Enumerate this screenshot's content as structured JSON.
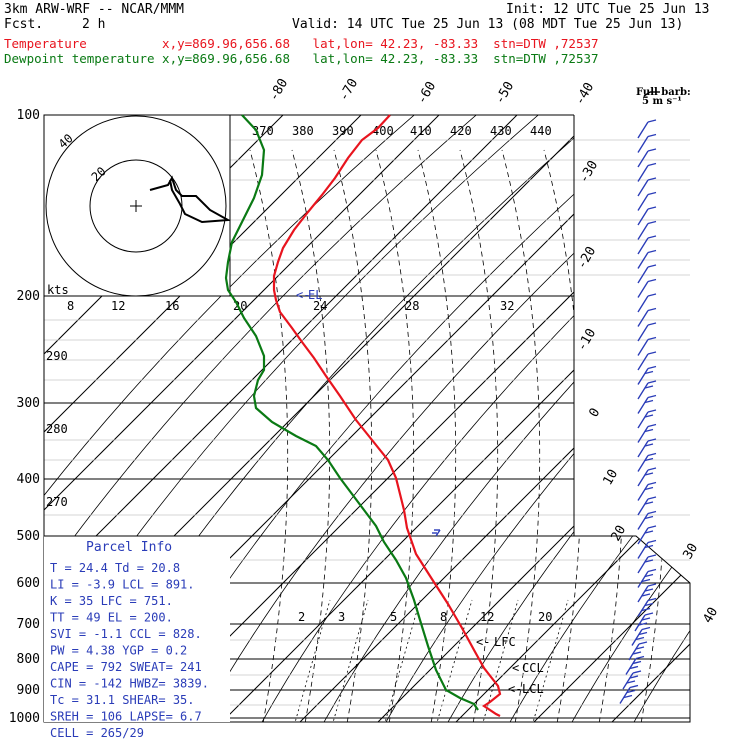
{
  "header": {
    "model": "3km ARW-WRF -- NCAR/MMM",
    "init": "Init: 12 UTC Tue 25 Jun 13",
    "fcst_label": "Fcst.",
    "fcst_value": "2 h",
    "valid": "Valid: 14 UTC Tue 25 Jun 13 (08 MDT Tue 25 Jun 13)",
    "temp_line": "Temperature          x,y=869.96,656.68   lat,lon= 42.23, -83.33  stn=DTW ,72537",
    "dew_line": "Dewpoint temperature x,y=869.96,656.68   lat,lon= 42.23, -83.33  stn=DTW ,72537"
  },
  "colors": {
    "temperature": "#e8141e",
    "dewpoint": "#0a7a14",
    "barb": "#2a3cb8",
    "grid": "#000000"
  },
  "barb_legend": {
    "line1": "Full barb:",
    "line2": "5 m s⁻¹"
  },
  "pressure_labels": [
    "100",
    "200",
    "300",
    "400",
    "500",
    "600",
    "700",
    "800",
    "900",
    "1000"
  ],
  "top_temp_labels": [
    "-80",
    "-70",
    "-60",
    "-50",
    "-40"
  ],
  "right_temp_labels": [
    "-30",
    "-20",
    "-10",
    "0",
    "10",
    "20",
    "30",
    "40"
  ],
  "theta_labels": [
    "370",
    "380",
    "390",
    "400",
    "410",
    "420",
    "430",
    "440"
  ],
  "theta_left_labels": [
    "290",
    "280",
    "270"
  ],
  "mixing_ratio_labels": [
    "2",
    "3",
    "5",
    "8",
    "12",
    "20"
  ],
  "hodo": {
    "kts": "kts",
    "speed_labels": [
      "8",
      "12",
      "16",
      "20",
      "24",
      "28",
      "32"
    ],
    "ring_labels": [
      "40",
      "20"
    ],
    "el_label": "EL"
  },
  "parcel_markers": {
    "lfc": "LFC",
    "ccl": "CCL",
    "lcl": "LCL"
  },
  "parcel_info": {
    "title": "Parcel Info",
    "rows": [
      "T   =    24.4  Td  =  20.8",
      "LI  =    -3.9  LCL =  891.",
      "K   =     35   LFC =  751.",
      "TT  =     49   EL  =  200.",
      "SVI =    -1.1  CCL =  828.",
      "PW  =    4.38  YGP =   0.2",
      "CAPE =   792  SWEAT=   241",
      "CIN  =  -142  HWBZ= 3839.",
      "Tc  =    31.1  SHEAR=  35.",
      "SREH =   106  LAPSE=   6.7",
      "CELL = 265/29"
    ]
  }
}
